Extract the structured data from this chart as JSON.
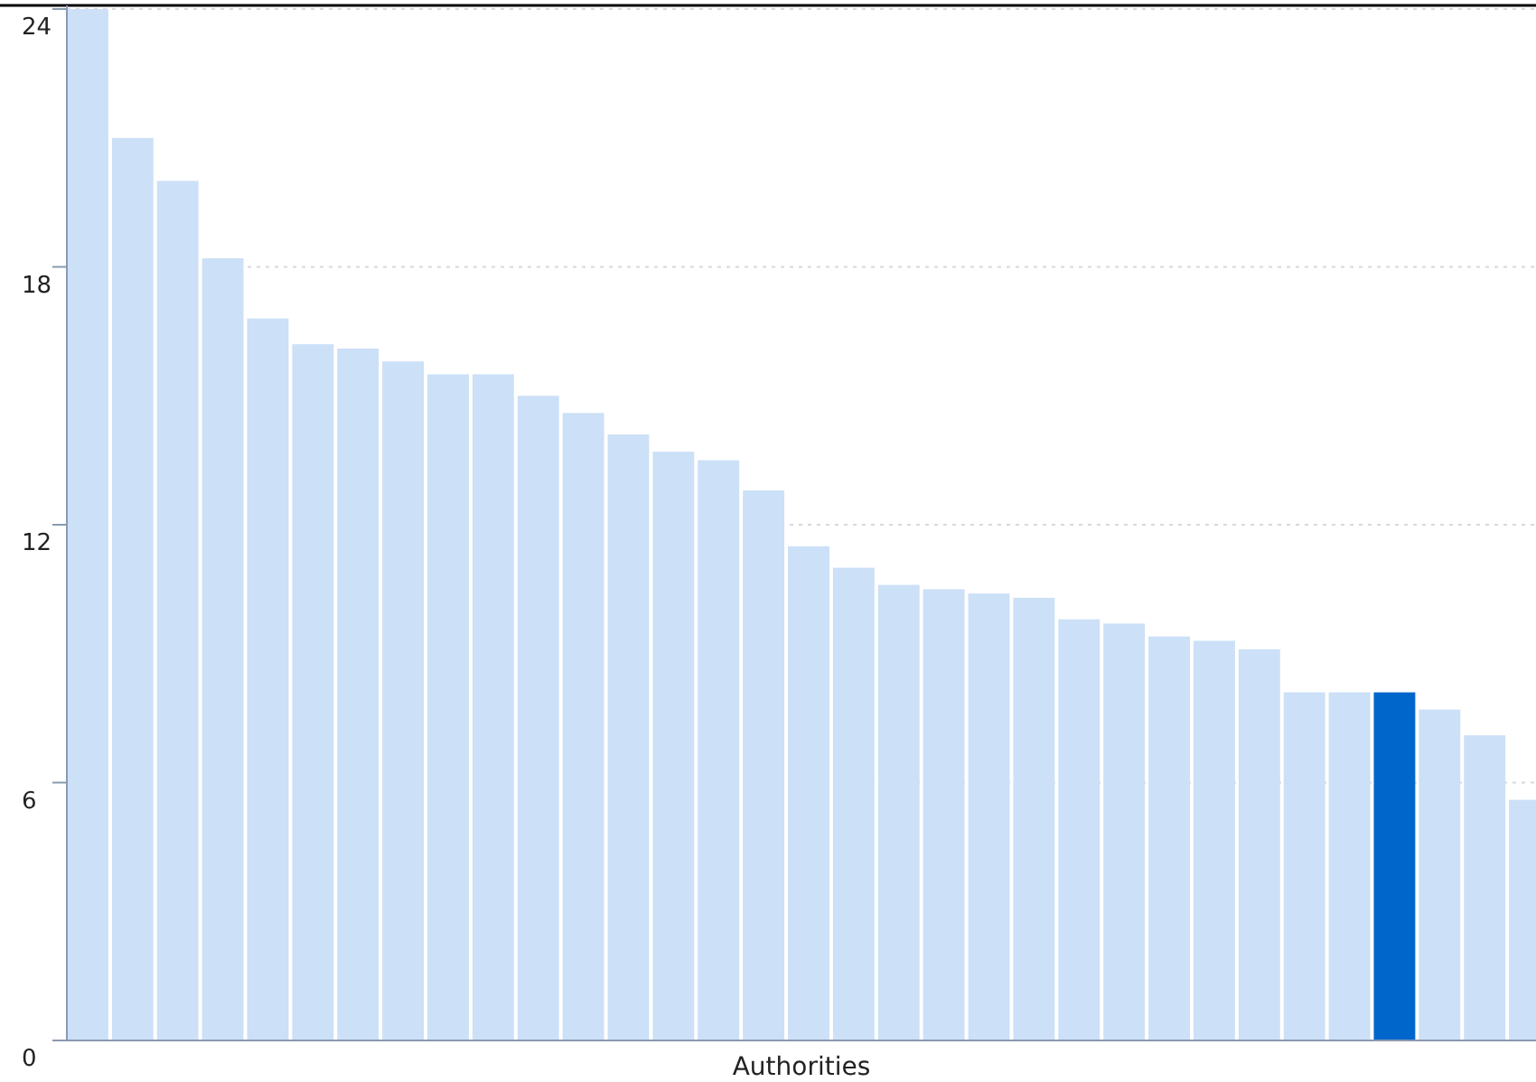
{
  "chart_data": {
    "type": "bar",
    "xlabel": "Authorities",
    "categories": [
      null,
      null,
      null,
      null,
      null,
      null,
      null,
      null,
      null,
      null,
      null,
      null,
      null,
      null,
      null,
      null,
      null,
      null,
      null,
      null,
      null,
      null,
      null,
      null,
      null,
      null,
      null,
      null,
      null,
      null,
      null,
      null,
      null
    ],
    "values": [
      24,
      21,
      20,
      18.2,
      16.8,
      16.2,
      16.1,
      15.8,
      15.5,
      15.5,
      15,
      14.6,
      14.1,
      13.7,
      13.5,
      12.8,
      11.5,
      11,
      10.6,
      10.5,
      10.4,
      10.3,
      9.8,
      9.7,
      9.4,
      9.3,
      9.1,
      8.1,
      8.1,
      8.1,
      7.7,
      7.1,
      5.6
    ],
    "colors": [
      "#cce0f7",
      "#cce0f7",
      "#cce0f7",
      "#cce0f7",
      "#cce0f7",
      "#cce0f7",
      "#cce0f7",
      "#cce0f7",
      "#cce0f7",
      "#cce0f7",
      "#cce0f7",
      "#cce0f7",
      "#cce0f7",
      "#cce0f7",
      "#cce0f7",
      "#cce0f7",
      "#cce0f7",
      "#cce0f7",
      "#cce0f7",
      "#cce0f7",
      "#cce0f7",
      "#cce0f7",
      "#cce0f7",
      "#cce0f7",
      "#cce0f7",
      "#cce0f7",
      "#cce0f7",
      "#cce0f7",
      "#cce0f7",
      "#0066cc",
      "#cce0f7",
      "#cce0f7",
      "#cce0f7"
    ],
    "ylim": [
      0,
      24
    ],
    "yticks": [
      0,
      6,
      12,
      18,
      24
    ],
    "grid": "y"
  }
}
